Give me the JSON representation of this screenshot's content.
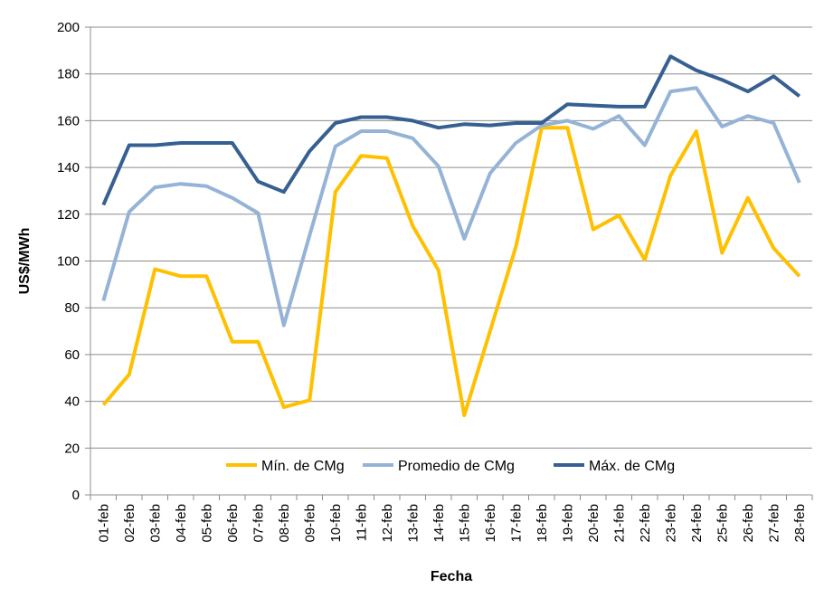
{
  "chart_data": {
    "type": "line",
    "title": "",
    "xlabel": "Fecha",
    "ylabel": "US$/MWh",
    "ylim": [
      0,
      200
    ],
    "yticks": [
      0,
      20,
      40,
      60,
      80,
      100,
      120,
      140,
      160,
      180,
      200
    ],
    "grid": true,
    "legend_position": "bottom-inside",
    "categories": [
      "01-feb",
      "02-feb",
      "03-feb",
      "04-feb",
      "05-feb",
      "06-feb",
      "07-feb",
      "08-feb",
      "09-feb",
      "10-feb",
      "11-feb",
      "12-feb",
      "13-feb",
      "14-feb",
      "15-feb",
      "16-feb",
      "17-feb",
      "18-feb",
      "19-feb",
      "20-feb",
      "21-feb",
      "22-feb",
      "23-feb",
      "24-feb",
      "25-feb",
      "26-feb",
      "27-feb",
      "28-feb"
    ],
    "series": [
      {
        "name": "Mín. de CMg",
        "color": "#FFC000",
        "values": [
          38.5,
          51.5,
          96.5,
          93.5,
          93.5,
          65.5,
          65.5,
          37.5,
          40.5,
          129.5,
          145,
          144,
          115,
          96,
          34,
          70,
          106,
          157,
          157,
          113.5,
          119.5,
          100.5,
          136.5,
          155.5,
          103.5,
          127,
          105.5,
          93.5
        ]
      },
      {
        "name": "Promedio de CMg",
        "color": "#95B3D7",
        "values": [
          83,
          121,
          131.5,
          133,
          132,
          127,
          120.5,
          72.5,
          111,
          149,
          155.5,
          155.5,
          152.5,
          140.5,
          109.5,
          137.5,
          150.5,
          158,
          160,
          156.5,
          162,
          149.5,
          172.5,
          174,
          157.5,
          162,
          159,
          133.5
        ]
      },
      {
        "name": "Máx. de CMg",
        "color": "#376092",
        "values": [
          124,
          149.5,
          149.5,
          150.5,
          150.5,
          150.5,
          134,
          129.5,
          147,
          159,
          161.5,
          161.5,
          160,
          157,
          158.5,
          158,
          159,
          159,
          167,
          166.5,
          166,
          166,
          187.5,
          181.5,
          177.5,
          172.5,
          179,
          170.5
        ]
      }
    ]
  }
}
